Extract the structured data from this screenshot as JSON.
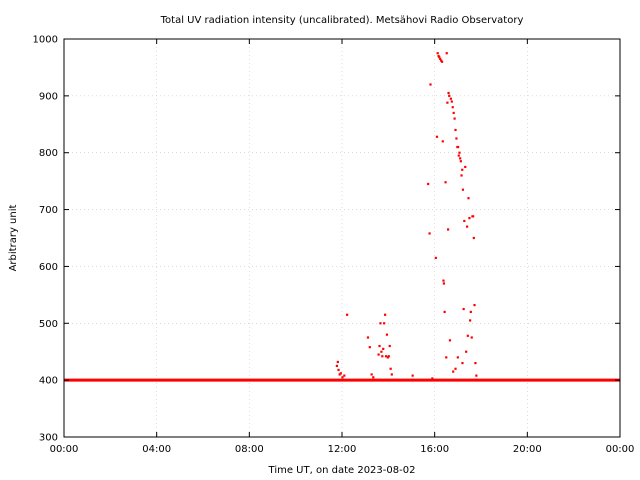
{
  "chart_data": {
    "type": "scatter",
    "title": "Total UV radiation intensity (uncalibrated). Metsähovi Radio Observatory",
    "xlabel": "Time UT, on date 2023-08-02",
    "ylabel": "Arbitrary unit",
    "xlim": [
      0,
      24
    ],
    "ylim": [
      300,
      1000
    ],
    "x_tick_values": [
      0,
      4,
      8,
      12,
      16,
      20,
      24
    ],
    "x_tick_labels": [
      "00:00",
      "04:00",
      "08:00",
      "12:00",
      "16:00",
      "20:00",
      "00:00"
    ],
    "y_ticks": [
      300,
      400,
      500,
      600,
      700,
      800,
      900,
      1000
    ],
    "grid": true,
    "series": [
      {
        "color": "#ff0000",
        "baseline": {
          "x_start": 0,
          "x_end": 24,
          "value": 400
        },
        "points": [
          [
            11.78,
            425
          ],
          [
            11.82,
            432
          ],
          [
            11.85,
            418
          ],
          [
            11.9,
            410
          ],
          [
            11.95,
            412
          ],
          [
            12.02,
            405
          ],
          [
            12.1,
            408
          ],
          [
            12.22,
            515
          ],
          [
            13.12,
            475
          ],
          [
            13.2,
            458
          ],
          [
            13.28,
            410
          ],
          [
            13.35,
            405
          ],
          [
            13.58,
            445
          ],
          [
            13.62,
            460
          ],
          [
            13.66,
            500
          ],
          [
            13.7,
            450
          ],
          [
            13.74,
            442
          ],
          [
            13.78,
            455
          ],
          [
            13.82,
            500
          ],
          [
            13.86,
            515
          ],
          [
            13.9,
            442
          ],
          [
            13.94,
            480
          ],
          [
            13.98,
            440
          ],
          [
            14.02,
            442
          ],
          [
            14.06,
            460
          ],
          [
            14.1,
            420
          ],
          [
            14.15,
            410
          ],
          [
            15.05,
            408
          ],
          [
            15.72,
            745
          ],
          [
            15.78,
            658
          ],
          [
            15.82,
            920
          ],
          [
            15.9,
            403
          ],
          [
            16.05,
            615
          ],
          [
            16.1,
            828
          ],
          [
            16.13,
            975
          ],
          [
            16.17,
            970
          ],
          [
            16.2,
            968
          ],
          [
            16.24,
            965
          ],
          [
            16.28,
            962
          ],
          [
            16.32,
            960
          ],
          [
            16.35,
            820
          ],
          [
            16.38,
            575
          ],
          [
            16.4,
            570
          ],
          [
            16.43,
            520
          ],
          [
            16.47,
            748
          ],
          [
            16.5,
            440
          ],
          [
            16.52,
            975
          ],
          [
            16.55,
            888
          ],
          [
            16.58,
            665
          ],
          [
            16.6,
            905
          ],
          [
            16.63,
            900
          ],
          [
            16.66,
            470
          ],
          [
            16.7,
            895
          ],
          [
            16.74,
            890
          ],
          [
            16.78,
            880
          ],
          [
            16.82,
            870
          ],
          [
            16.86,
            860
          ],
          [
            16.9,
            840
          ],
          [
            16.94,
            825
          ],
          [
            16.98,
            810
          ],
          [
            17.01,
            810
          ],
          [
            17.04,
            795
          ],
          [
            17.07,
            800
          ],
          [
            17.1,
            790
          ],
          [
            17.13,
            785
          ],
          [
            17.16,
            760
          ],
          [
            17.19,
            770
          ],
          [
            17.22,
            735
          ],
          [
            17.25,
            525
          ],
          [
            17.28,
            680
          ],
          [
            17.32,
            775
          ],
          [
            17.36,
            450
          ],
          [
            17.4,
            670
          ],
          [
            17.43,
            478
          ],
          [
            17.46,
            720
          ],
          [
            17.5,
            685
          ],
          [
            17.53,
            505
          ],
          [
            17.56,
            520
          ],
          [
            17.6,
            475
          ],
          [
            17.63,
            688
          ],
          [
            17.66,
            688
          ],
          [
            17.69,
            650
          ],
          [
            17.72,
            532
          ],
          [
            17.76,
            430
          ],
          [
            17.8,
            408
          ],
          [
            16.8,
            415
          ],
          [
            16.9,
            420
          ],
          [
            17.0,
            440
          ],
          [
            17.2,
            430
          ]
        ]
      }
    ]
  }
}
